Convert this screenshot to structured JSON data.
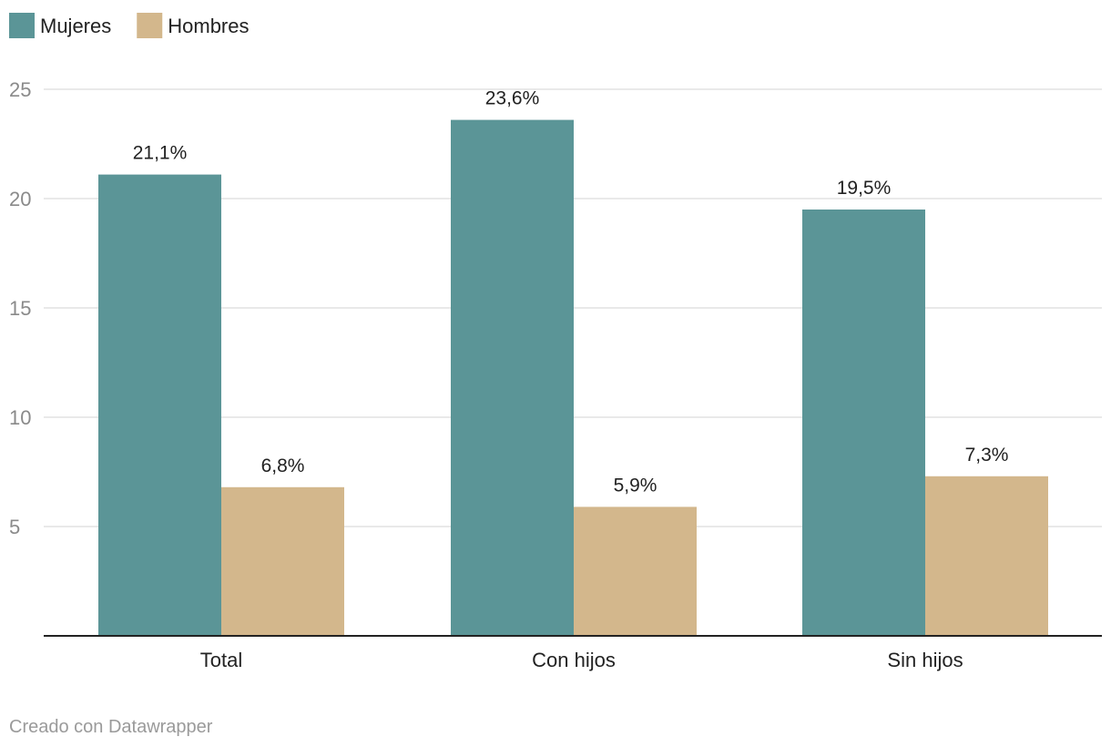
{
  "chart_data": {
    "type": "bar",
    "title": "",
    "xlabel": "",
    "ylabel": "",
    "ylim": [
      0,
      25
    ],
    "yticks": [
      5,
      10,
      15,
      20,
      25
    ],
    "grid": true,
    "legend_position": "top-left",
    "categories": [
      "Total",
      "Con hijos",
      "Sin hijos"
    ],
    "series": [
      {
        "name": "Mujeres",
        "color": "#5b9597",
        "values": [
          21.1,
          23.6,
          19.5
        ],
        "labels": [
          "21,1%",
          "23,6%",
          "19,5%"
        ]
      },
      {
        "name": "Hombres",
        "color": "#d3b78c",
        "values": [
          6.8,
          5.9,
          7.3
        ],
        "labels": [
          "6,8%",
          "5,9%",
          "7,3%"
        ]
      }
    ]
  },
  "footer": {
    "credit": "Creado con Datawrapper"
  }
}
